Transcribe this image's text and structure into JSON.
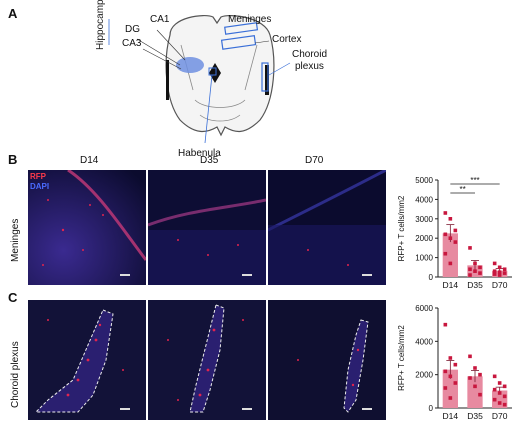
{
  "panels": {
    "a": "A",
    "b": "B",
    "c": "C"
  },
  "brain": {
    "hippocampus": "Hippocampus",
    "ca1": "CA1",
    "dg": "DG",
    "ca3": "CA3",
    "meninges": "Meninges",
    "cortex": "Cortex",
    "choroid_plexus_1": "Choroid",
    "choroid_plexus_2": "plexus",
    "habenula": "Habenula"
  },
  "micrographs": {
    "timepoints": [
      "D14",
      "D35",
      "D70"
    ],
    "stain_rfp": "RFP",
    "stain_dapi": "DAPI",
    "row_b": "Meninges",
    "row_c": "Choroid plexus"
  },
  "colors": {
    "bar": "#e78aa0",
    "point": "#c8173e",
    "rfp": "#e2234f",
    "dapi": "#3a50e8"
  },
  "chart_data": [
    {
      "type": "bar",
      "title": "",
      "ylabel": "RFP+ T cells/mm2",
      "categories": [
        "D14",
        "D35",
        "D70"
      ],
      "values": [
        2250,
        600,
        320
      ],
      "errors": [
        450,
        250,
        120
      ],
      "ylim": [
        0,
        5000
      ],
      "yticks": [
        0,
        1000,
        2000,
        3000,
        4000,
        5000
      ],
      "points": [
        [
          3300,
          3000,
          2400,
          2200,
          2000,
          1800,
          1200,
          700
        ],
        [
          1500,
          700,
          500,
          400,
          300,
          200,
          100
        ],
        [
          700,
          500,
          400,
          300,
          250,
          200,
          150,
          100
        ]
      ],
      "significance": [
        {
          "from": 0,
          "to": 1,
          "label": "**"
        },
        {
          "from": 0,
          "to": 2,
          "label": "***"
        }
      ]
    },
    {
      "type": "bar",
      "title": "",
      "ylabel": "RFP+ T cells/mm2",
      "categories": [
        "D14",
        "D35",
        "D70"
      ],
      "values": [
        2300,
        1900,
        1050
      ],
      "errors": [
        550,
        350,
        200
      ],
      "ylim": [
        0,
        6000
      ],
      "yticks": [
        0,
        2000,
        4000,
        6000
      ],
      "points": [
        [
          5000,
          3000,
          2600,
          2200,
          1900,
          1500,
          1200,
          600
        ],
        [
          3100,
          2400,
          2000,
          1800,
          1300,
          800
        ],
        [
          1900,
          1500,
          1300,
          1100,
          900,
          700,
          500,
          300,
          200
        ]
      ]
    }
  ]
}
